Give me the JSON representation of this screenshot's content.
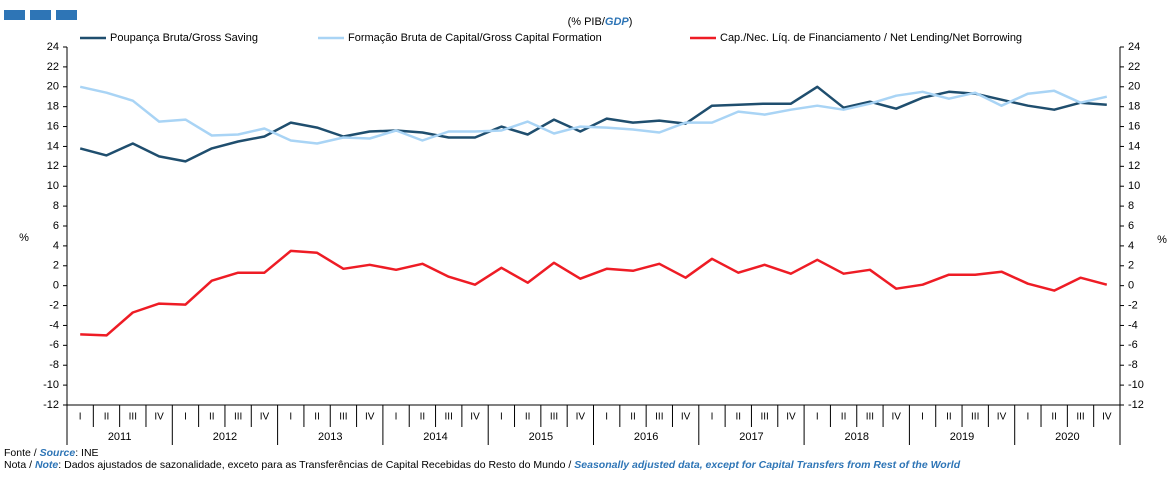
{
  "chart_data": {
    "type": "line",
    "unit_label": {
      "pt": "(% PIB/",
      "en": "GDP",
      "close": ")"
    },
    "y_label": "%",
    "y2_label": "%",
    "categories": [
      "I",
      "II",
      "III",
      "IV",
      "I",
      "II",
      "III",
      "IV",
      "I",
      "II",
      "III",
      "IV",
      "I",
      "II",
      "III",
      "IV",
      "I",
      "II",
      "III",
      "IV",
      "I",
      "II",
      "III",
      "IV",
      "I",
      "II",
      "III",
      "IV",
      "I",
      "II",
      "III",
      "IV",
      "I",
      "II",
      "III",
      "IV",
      "I",
      "II",
      "III",
      "IV"
    ],
    "years": [
      "2011",
      "2012",
      "2013",
      "2014",
      "2015",
      "2016",
      "2017",
      "2018",
      "2019",
      "2020"
    ],
    "series": [
      {
        "name": "Poupança Bruta/Gross Saving",
        "color": "#1f4e6e",
        "values": [
          13.8,
          13.1,
          14.3,
          13.0,
          12.5,
          13.8,
          14.5,
          15.0,
          16.4,
          15.9,
          15.0,
          15.5,
          15.6,
          15.4,
          14.9,
          14.9,
          16.0,
          15.2,
          16.7,
          15.5,
          16.8,
          16.4,
          16.6,
          16.3,
          18.1,
          18.2,
          18.3,
          18.3,
          20.0,
          17.9,
          18.5,
          17.8,
          18.9,
          19.5,
          19.3,
          18.7,
          18.1,
          17.7,
          18.4,
          18.2
        ]
      },
      {
        "name": "Formação Bruta de Capital/Gross Capital Formation",
        "color": "#a9d4f5",
        "values": [
          20.0,
          19.4,
          18.6,
          16.5,
          16.7,
          15.1,
          15.2,
          15.8,
          14.6,
          14.3,
          14.9,
          14.8,
          15.6,
          14.6,
          15.5,
          15.5,
          15.6,
          16.5,
          15.3,
          16.0,
          15.9,
          15.7,
          15.4,
          16.4,
          16.4,
          17.5,
          17.2,
          17.7,
          18.1,
          17.7,
          18.3,
          19.1,
          19.5,
          18.8,
          19.4,
          18.1,
          19.3,
          19.6,
          18.4,
          19.0
        ]
      },
      {
        "name": "Cap./Nec. Líq. de Financiamento / Net Lending/Net Borrowing",
        "color": "#ee1c25",
        "values": [
          -4.9,
          -5.0,
          -2.7,
          -1.8,
          -1.9,
          0.5,
          1.3,
          1.3,
          3.5,
          3.3,
          1.7,
          2.1,
          1.6,
          2.2,
          0.9,
          0.1,
          1.8,
          0.3,
          2.3,
          0.7,
          1.7,
          1.5,
          2.2,
          0.8,
          2.7,
          1.3,
          2.1,
          1.2,
          2.6,
          1.2,
          1.6,
          -0.3,
          0.1,
          1.1,
          1.1,
          1.4,
          0.2,
          -0.5,
          0.8,
          0.1
        ]
      }
    ],
    "ylim": [
      -12,
      24
    ],
    "yticks": [
      24,
      22,
      20,
      18,
      16,
      14,
      12,
      10,
      8,
      6,
      4,
      2,
      0,
      -2,
      -4,
      -6,
      -8,
      -10,
      -12
    ],
    "y2lim": [
      -12,
      24
    ],
    "y2ticks": [
      24,
      22,
      20,
      18,
      16,
      14,
      12,
      10,
      8,
      6,
      4,
      2,
      0,
      -2,
      -4,
      -6,
      -8,
      -10,
      -12
    ],
    "source": {
      "pt": "Fonte / ",
      "en": "Source",
      "text": ":  INE"
    },
    "note": {
      "pt": "Nota / ",
      "en": "Note",
      "text": ": Dados ajustados de sazonalidade, exceto para as Transferências de Capital Recebidas do Resto do Mundo / ",
      "en_text": "Seasonally adjusted data, except for Capital Transfers from Rest of the World"
    }
  }
}
